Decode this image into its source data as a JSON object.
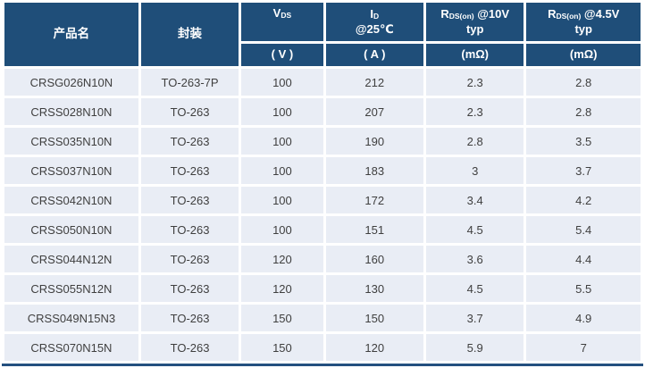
{
  "colors": {
    "header_bg": "#1F4E79",
    "header_text": "#FFFFFF",
    "row_bg": "#E9EDF5",
    "row_text": "#3F3F3F",
    "gutter": "#FFFFFF",
    "bottom_rule": "#24507F"
  },
  "table": {
    "header": {
      "product_name": "产品名",
      "package": "封装",
      "vds": {
        "main": "V",
        "sub": "DS"
      },
      "id": {
        "main": "I",
        "sub": "D",
        "line2": "@25℃"
      },
      "r10": {
        "main": "R",
        "sub": "DS(on)",
        "rest": " @10V",
        "line2": "typ"
      },
      "r45": {
        "main": "R",
        "sub": "DS(on)",
        "rest": " @4.5V",
        "line2": "typ"
      },
      "units": {
        "vds": "( V )",
        "id": "( A )",
        "r10": "(mΩ)",
        "r45": "(mΩ)"
      }
    },
    "rows": [
      [
        "CRSG026N10N",
        "TO-263-7P",
        "100",
        "212",
        "2.3",
        "2.8"
      ],
      [
        "CRSS028N10N",
        "TO-263",
        "100",
        "207",
        "2.3",
        "2.8"
      ],
      [
        "CRSS035N10N",
        "TO-263",
        "100",
        "190",
        "2.8",
        "3.5"
      ],
      [
        "CRSS037N10N",
        "TO-263",
        "100",
        "183",
        "3",
        "3.7"
      ],
      [
        "CRSS042N10N",
        "TO-263",
        "100",
        "172",
        "3.4",
        "4.2"
      ],
      [
        "CRSS050N10N",
        "TO-263",
        "100",
        "151",
        "4.5",
        "5.4"
      ],
      [
        "CRSS044N12N",
        "TO-263",
        "120",
        "160",
        "3.6",
        "4.4"
      ],
      [
        "CRSS055N12N",
        "TO-263",
        "120",
        "130",
        "4.5",
        "5.5"
      ],
      [
        "CRSS049N15N3",
        "TO-263",
        "150",
        "150",
        "3.7",
        "4.9"
      ],
      [
        "CRSS070N15N",
        "TO-263",
        "150",
        "120",
        "5.9",
        "7"
      ]
    ]
  }
}
